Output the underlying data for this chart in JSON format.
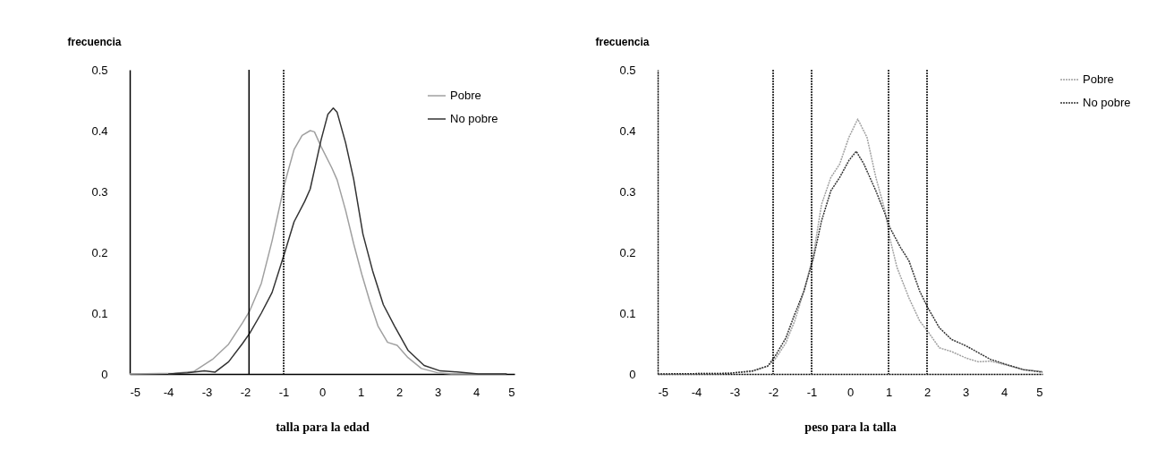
{
  "chart_data": [
    {
      "type": "line",
      "xlabel": "talla para la edad",
      "ylabel": "frecuencia",
      "xlim": [
        -5,
        5
      ],
      "xticks": [
        -5,
        -4,
        -3,
        -2,
        -1,
        0,
        1,
        2,
        3,
        4,
        5
      ],
      "ylim": [
        0,
        0.5
      ],
      "yticks": [
        0,
        0.1,
        0.2,
        0.3,
        0.4,
        0.5
      ],
      "grid": false,
      "legend": "top right",
      "line_style": "solid",
      "series": [
        {
          "name": "Pobre",
          "color": "#a0a0a0",
          "x": [
            -5,
            -3.84,
            -3.34,
            -2.85,
            -2.43,
            -2.07,
            -1.88,
            -1.58,
            -1.3,
            -0.97,
            -0.73,
            -0.52,
            -0.31,
            -0.2,
            -0.03,
            0.25,
            0.39,
            0.61,
            0.82,
            1.03,
            1.24,
            1.45,
            1.7,
            1.95,
            2.23,
            2.58,
            3.0,
            3.36,
            4.77
          ],
          "values": [
            0,
            0.001,
            0.004,
            0.024,
            0.049,
            0.084,
            0.104,
            0.149,
            0.219,
            0.314,
            0.369,
            0.392,
            0.4,
            0.398,
            0.374,
            0.339,
            0.319,
            0.269,
            0.214,
            0.164,
            0.119,
            0.079,
            0.052,
            0.047,
            0.027,
            0.009,
            0.002,
            0,
            0
          ]
        },
        {
          "name": "No pobre",
          "color": "#333333",
          "x": [
            -4,
            -3.5,
            -3.06,
            -2.78,
            -2.43,
            -2.07,
            -1.88,
            -1.58,
            -1.3,
            -0.97,
            -0.73,
            -0.45,
            -0.31,
            -0.17,
            -0.03,
            0.15,
            0.29,
            0.39,
            0.61,
            0.82,
            1.06,
            1.31,
            1.59,
            1.88,
            2.23,
            2.65,
            3.07,
            3.57,
            4.06,
            4.8
          ],
          "values": [
            0,
            0.002,
            0.005,
            0.003,
            0.02,
            0.05,
            0.067,
            0.1,
            0.134,
            0.2,
            0.25,
            0.284,
            0.304,
            0.344,
            0.384,
            0.427,
            0.437,
            0.43,
            0.38,
            0.32,
            0.23,
            0.17,
            0.114,
            0.079,
            0.039,
            0.014,
            0.005,
            0.003,
            0,
            0
          ]
        }
      ],
      "ref_lines": [
        {
          "axis": "x",
          "value": -1.9,
          "line_style": "solid"
        },
        {
          "axis": "x",
          "value": -1,
          "line_style": "dotted"
        }
      ]
    },
    {
      "type": "line",
      "xlabel": "peso para la talla",
      "ylabel": "frecuencia",
      "xlim": [
        -5,
        5
      ],
      "xticks": [
        -5,
        -4,
        -3,
        -2,
        -1,
        0,
        1,
        2,
        3,
        4,
        5
      ],
      "ylim": [
        0,
        0.5
      ],
      "yticks": [
        0,
        0.1,
        0.2,
        0.3,
        0.4,
        0.5
      ],
      "grid": false,
      "legend": "right",
      "line_style": "dotted",
      "series": [
        {
          "name": "Pobre",
          "color": "#a0a0a0",
          "x": [
            -5,
            -3.16,
            -2.54,
            -2.14,
            -1.95,
            -1.67,
            -1.44,
            -1.2,
            -0.95,
            -0.74,
            -0.5,
            -0.27,
            -0.03,
            0.2,
            0.44,
            0.67,
            0.91,
            1.03,
            1.22,
            1.53,
            1.81,
            2.02,
            2.32,
            2.63,
            3.02,
            3.33,
            3.65,
            4.04,
            4.51,
            5
          ],
          "values": [
            0,
            0.001,
            0.004,
            0.013,
            0.024,
            0.051,
            0.087,
            0.136,
            0.197,
            0.279,
            0.323,
            0.345,
            0.389,
            0.419,
            0.389,
            0.323,
            0.268,
            0.224,
            0.175,
            0.125,
            0.087,
            0.07,
            0.043,
            0.037,
            0.026,
            0.02,
            0.021,
            0.015,
            0.007,
            0.004
          ]
        },
        {
          "name": "No pobre",
          "color": "#333333",
          "x": [
            -5,
            -3.16,
            -2.54,
            -2.14,
            -1.95,
            -1.67,
            -1.44,
            -1.2,
            -0.95,
            -0.74,
            -0.5,
            -0.27,
            -0.03,
            0.16,
            0.36,
            0.67,
            0.91,
            1.03,
            1.31,
            1.53,
            1.81,
            2.02,
            2.32,
            2.63,
            3.02,
            3.33,
            3.65,
            4.04,
            4.51,
            5
          ],
          "values": [
            0,
            0.001,
            0.005,
            0.013,
            0.029,
            0.059,
            0.098,
            0.136,
            0.191,
            0.252,
            0.301,
            0.323,
            0.351,
            0.366,
            0.345,
            0.301,
            0.263,
            0.241,
            0.208,
            0.186,
            0.136,
            0.109,
            0.076,
            0.057,
            0.046,
            0.035,
            0.024,
            0.016,
            0.007,
            0.003
          ]
        }
      ],
      "ref_lines": [
        {
          "axis": "x",
          "value": -2,
          "line_style": "dotted"
        },
        {
          "axis": "x",
          "value": -1,
          "line_style": "dotted"
        },
        {
          "axis": "x",
          "value": 1,
          "line_style": "dotted"
        },
        {
          "axis": "x",
          "value": 2,
          "line_style": "dotted"
        }
      ]
    }
  ]
}
